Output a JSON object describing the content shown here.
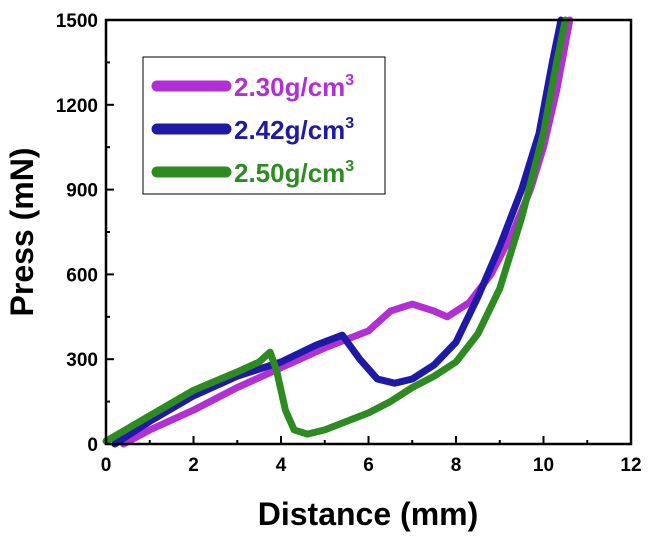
{
  "chart_data": {
    "type": "line",
    "title": "",
    "xlabel": "Distance (mm)",
    "ylabel": "Press (mN)",
    "xlim": [
      0,
      12
    ],
    "ylim": [
      0,
      1500
    ],
    "xticks": [
      0,
      2,
      4,
      6,
      8,
      10,
      12
    ],
    "yticks": [
      0,
      300,
      600,
      900,
      1200,
      1500
    ],
    "grid": false,
    "legend_position": "top-left",
    "series": [
      {
        "name": "2.30g/cm3",
        "label_base": "2.30g/cm",
        "label_sup": "3",
        "color": "#b12fd3",
        "x": [
          0.4,
          1.0,
          2.0,
          3.0,
          4.0,
          5.0,
          6.0,
          6.5,
          7.0,
          7.5,
          7.8,
          8.3,
          8.8,
          9.3,
          9.7,
          10.0,
          10.3,
          10.6
        ],
        "y": [
          0,
          50,
          120,
          200,
          270,
          340,
          400,
          470,
          495,
          470,
          450,
          500,
          600,
          750,
          900,
          1050,
          1250,
          1500
        ]
      },
      {
        "name": "2.42g/cm3",
        "label_base": "2.42g/cm",
        "label_sup": "3",
        "color": "#1f1aa6",
        "x": [
          0.2,
          1.0,
          2.0,
          3.0,
          4.0,
          4.8,
          5.4,
          5.8,
          6.2,
          6.6,
          7.0,
          7.5,
          8.0,
          8.5,
          9.0,
          9.5,
          9.9,
          10.2,
          10.4
        ],
        "y": [
          0,
          80,
          170,
          240,
          290,
          350,
          385,
          300,
          230,
          215,
          230,
          280,
          360,
          520,
          700,
          900,
          1100,
          1350,
          1500
        ]
      },
      {
        "name": "2.50g/cm3",
        "label_base": "2.50g/cm",
        "label_sup": "3",
        "color": "#2e8b22",
        "x": [
          0.0,
          1.0,
          2.0,
          3.0,
          3.5,
          3.75,
          3.9,
          4.1,
          4.3,
          4.6,
          5.0,
          5.5,
          6.0,
          6.5,
          7.0,
          7.5,
          8.0,
          8.5,
          9.0,
          9.5,
          10.0,
          10.3,
          10.5
        ],
        "y": [
          10,
          100,
          190,
          255,
          290,
          325,
          260,
          120,
          50,
          35,
          50,
          80,
          110,
          150,
          200,
          240,
          290,
          390,
          550,
          800,
          1100,
          1350,
          1500
        ]
      }
    ]
  }
}
